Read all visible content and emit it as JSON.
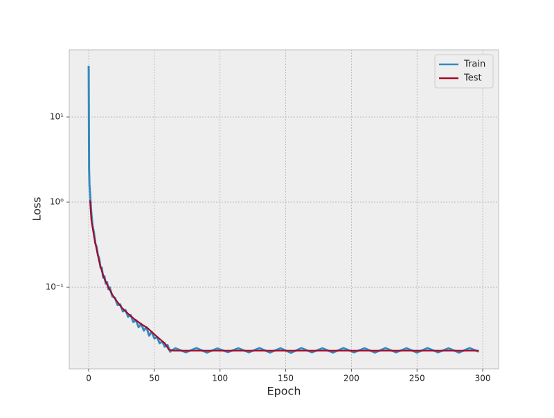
{
  "chart_data": {
    "type": "line",
    "xlabel": "Epoch",
    "ylabel": "Loss",
    "xlim": [
      -14.8,
      312.1
    ],
    "ylim": [
      0.011,
      61.5
    ],
    "yscale": "log",
    "xticks": [
      0,
      50,
      100,
      150,
      200,
      250,
      300
    ],
    "yticks": [
      {
        "value": 0.1,
        "label": "10⁻¹"
      },
      {
        "value": 1,
        "label": "10⁰"
      },
      {
        "value": 10,
        "label": "10¹"
      }
    ],
    "grid": true,
    "legend": "upper right",
    "series": [
      {
        "name": "Train",
        "color": "#348abd",
        "x": [
          0,
          0.3,
          0.6,
          1,
          2,
          3,
          4,
          5,
          6,
          7,
          8,
          9,
          10,
          11,
          12,
          13,
          14,
          15,
          16,
          18,
          20,
          22,
          24,
          26,
          28,
          30,
          32,
          34,
          36,
          38,
          40,
          42,
          44,
          46,
          48,
          50,
          52,
          54,
          56,
          58,
          60,
          62,
          66,
          74,
          82,
          90,
          98,
          106,
          114,
          122,
          130,
          138,
          146,
          154,
          162,
          170,
          178,
          186,
          194,
          202,
          210,
          218,
          226,
          234,
          242,
          250,
          258,
          266,
          274,
          282,
          290,
          297
        ],
        "values": [
          40,
          2.5,
          1.6,
          1.3,
          0.75,
          0.52,
          0.44,
          0.33,
          0.3,
          0.24,
          0.22,
          0.17,
          0.17,
          0.13,
          0.135,
          0.11,
          0.115,
          0.095,
          0.1,
          0.078,
          0.075,
          0.062,
          0.063,
          0.052,
          0.054,
          0.045,
          0.047,
          0.039,
          0.041,
          0.034,
          0.037,
          0.031,
          0.034,
          0.027,
          0.03,
          0.025,
          0.026,
          0.022,
          0.023,
          0.02,
          0.021,
          0.0175,
          0.0192,
          0.0172,
          0.0193,
          0.0171,
          0.0191,
          0.0173,
          0.0192,
          0.0172,
          0.0193,
          0.0171,
          0.0192,
          0.017,
          0.0193,
          0.0172,
          0.0192,
          0.0171,
          0.0193,
          0.0172,
          0.0192,
          0.0171,
          0.0193,
          0.0172,
          0.0192,
          0.0171,
          0.0193,
          0.0172,
          0.0192,
          0.0171,
          0.0193,
          0.0175
        ]
      },
      {
        "name": "Test",
        "color": "#a60628",
        "x": [
          1,
          2,
          4,
          6,
          8,
          10,
          12,
          15,
          18,
          21,
          25,
          30,
          35,
          40,
          45,
          50,
          55,
          58,
          61,
          65,
          100,
          150,
          200,
          250,
          297
        ],
        "values": [
          1.05,
          0.62,
          0.4,
          0.28,
          0.2,
          0.155,
          0.125,
          0.1,
          0.082,
          0.07,
          0.058,
          0.049,
          0.042,
          0.037,
          0.033,
          0.028,
          0.024,
          0.022,
          0.0185,
          0.018,
          0.018,
          0.018,
          0.018,
          0.018,
          0.018
        ]
      }
    ]
  }
}
